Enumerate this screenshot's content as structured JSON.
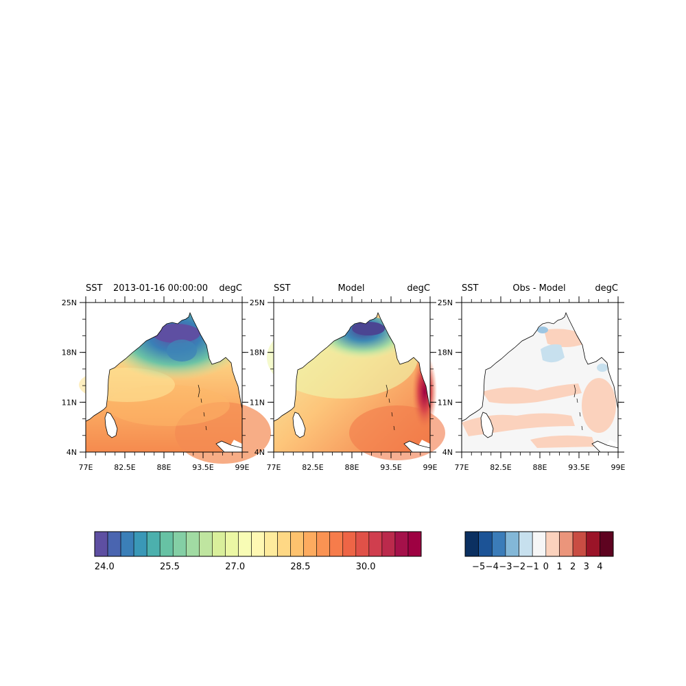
{
  "panels": [
    {
      "id": "obs",
      "left": "SST",
      "center": "2013-01-16 00:00:00",
      "right": "degC"
    },
    {
      "id": "model",
      "left": "SST",
      "center": "Model",
      "right": "degC"
    },
    {
      "id": "diff",
      "left": "SST",
      "center": "Obs - Model",
      "right": "degC"
    }
  ],
  "axes": {
    "lon_ticks": [
      "77E",
      "82.5E",
      "88E",
      "93.5E",
      "99E"
    ],
    "lat_ticks": [
      "25N",
      "18N",
      "11N",
      "4N"
    ]
  },
  "colorbar_sst": {
    "colors": [
      "#5e4fa2",
      "#4a65b0",
      "#3b7fb8",
      "#3a98b7",
      "#4cb0ad",
      "#67c2a4",
      "#84cfa5",
      "#a1dba3",
      "#bfe5a0",
      "#d9ef9b",
      "#ebf7a4",
      "#f8fcb5",
      "#fff8b3",
      "#feeb9d",
      "#fed885",
      "#fdc26e",
      "#fdab5f",
      "#fa9353",
      "#f67c4b",
      "#ee6546",
      "#e05148",
      "#d03e4e",
      "#bb2a4c",
      "#a5114a",
      "#9e0142"
    ],
    "labels": [
      "24.0",
      "25.5",
      "27.0",
      "28.5",
      "30.0"
    ]
  },
  "colorbar_diff": {
    "colors": [
      "#0b3061",
      "#1c5396",
      "#3b7cb9",
      "#83b7d7",
      "#c7e0ee",
      "#f6f6f6",
      "#fbd2bd",
      "#eb957b",
      "#c94d43",
      "#9b1428",
      "#5e0320"
    ],
    "labels": [
      "−5",
      "−4",
      "−3",
      "−2",
      "−1",
      "0",
      "1",
      "2",
      "3",
      "4"
    ]
  }
}
